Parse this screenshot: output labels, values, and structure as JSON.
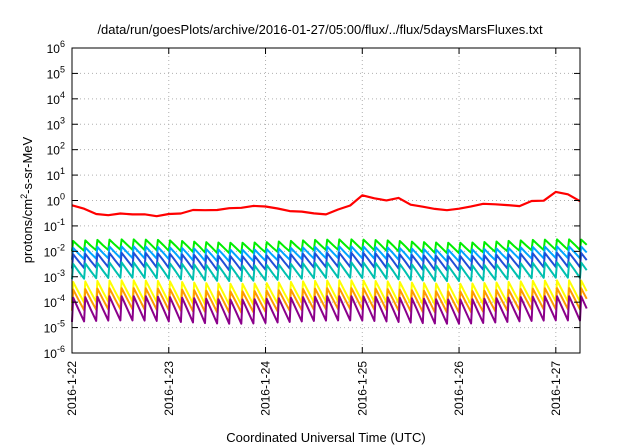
{
  "chart_data": {
    "type": "line",
    "title": "/data/run/goesPlots/archive/2016-01-27/05:00/flux/../flux/5daysMarsFluxes.txt",
    "xlabel": "Coordinated Universal Time (UTC)",
    "ylabel": {
      "base": "protons/cm",
      "sup": "2",
      "rest": "-s-sr-MeV"
    },
    "y_scale": "log",
    "ylim": [
      1e-06,
      1000000.0
    ],
    "xlim": [
      "2016-01-22T00:00",
      "2016-01-27T06:00"
    ],
    "grid": true,
    "y_ticks": [
      {
        "value": 1e-06,
        "base": "10",
        "exp": "-6"
      },
      {
        "value": 1e-05,
        "base": "10",
        "exp": "-5"
      },
      {
        "value": 0.0001,
        "base": "10",
        "exp": "-4"
      },
      {
        "value": 0.001,
        "base": "10",
        "exp": "-3"
      },
      {
        "value": 0.01,
        "base": "10",
        "exp": "-2"
      },
      {
        "value": 0.1,
        "base": "10",
        "exp": "-1"
      },
      {
        "value": 1.0,
        "base": "10",
        "exp": "0"
      },
      {
        "value": 10.0,
        "base": "10",
        "exp": "1"
      },
      {
        "value": 100.0,
        "base": "10",
        "exp": "2"
      },
      {
        "value": 1000.0,
        "base": "10",
        "exp": "3"
      },
      {
        "value": 10000.0,
        "base": "10",
        "exp": "4"
      },
      {
        "value": 100000.0,
        "base": "10",
        "exp": "5"
      },
      {
        "value": 1000000.0,
        "base": "10",
        "exp": "6"
      }
    ],
    "x_ticks": [
      {
        "value": "2016-01-22T00:00",
        "label": "2016-1-22"
      },
      {
        "value": "2016-01-23T00:00",
        "label": "2016-1-23"
      },
      {
        "value": "2016-01-24T00:00",
        "label": "2016-1-24"
      },
      {
        "value": "2016-01-25T00:00",
        "label": "2016-1-25"
      },
      {
        "value": "2016-01-26T00:00",
        "label": "2016-1-26"
      },
      {
        "value": "2016-01-27T00:00",
        "label": "2016-1-27"
      }
    ],
    "series": [
      {
        "color": "#ff0000",
        "x": [
          "2016-01-22T00:00",
          "2016-01-22T03:00",
          "2016-01-22T06:00",
          "2016-01-22T09:00",
          "2016-01-22T12:00",
          "2016-01-22T15:00",
          "2016-01-22T18:00",
          "2016-01-22T21:00",
          "2016-01-23T00:00",
          "2016-01-23T03:00",
          "2016-01-23T06:00",
          "2016-01-23T09:00",
          "2016-01-23T12:00",
          "2016-01-23T15:00",
          "2016-01-23T18:00",
          "2016-01-23T21:00",
          "2016-01-24T00:00",
          "2016-01-24T03:00",
          "2016-01-24T06:00",
          "2016-01-24T09:00",
          "2016-01-24T12:00",
          "2016-01-24T15:00",
          "2016-01-24T18:00",
          "2016-01-24T21:00",
          "2016-01-25T00:00",
          "2016-01-25T03:00",
          "2016-01-25T06:00",
          "2016-01-25T09:00",
          "2016-01-25T12:00",
          "2016-01-25T15:00",
          "2016-01-25T18:00",
          "2016-01-25T21:00",
          "2016-01-26T00:00",
          "2016-01-26T03:00",
          "2016-01-26T06:00",
          "2016-01-26T09:00",
          "2016-01-26T12:00",
          "2016-01-26T15:00",
          "2016-01-26T18:00",
          "2016-01-26T21:00",
          "2016-01-27T00:00",
          "2016-01-27T03:00",
          "2016-01-27T06:00"
        ],
        "values": [
          0.65,
          0.45,
          0.3,
          0.28,
          0.3,
          0.27,
          0.3,
          0.25,
          0.28,
          0.3,
          0.45,
          0.42,
          0.4,
          0.5,
          0.55,
          0.6,
          0.55,
          0.5,
          0.4,
          0.35,
          0.3,
          0.3,
          0.45,
          0.6,
          1.6,
          1.3,
          1.0,
          1.2,
          0.7,
          0.6,
          0.45,
          0.4,
          0.5,
          0.6,
          0.7,
          0.7,
          0.7,
          0.6,
          0.9,
          1.0,
          2.3,
          1.7,
          0.9
        ]
      },
      {
        "color": "#00ee00",
        "base": 0.016,
        "amp": 1.6
      },
      {
        "color": "#00a6ff",
        "base": 0.008,
        "amp": 1.7
      },
      {
        "color": "#1f4fd8",
        "base": 0.004,
        "amp": 1.9
      },
      {
        "color": "#00c0b0",
        "base": 0.0016,
        "amp": 2.0
      },
      {
        "color": "#ffff00",
        "base": 0.00024,
        "amp": 2.6
      },
      {
        "color": "#ff9a00",
        "base": 0.00012,
        "amp": 2.6
      },
      {
        "color": "#8b008b",
        "base": 5e-05,
        "amp": 3.0
      }
    ]
  }
}
